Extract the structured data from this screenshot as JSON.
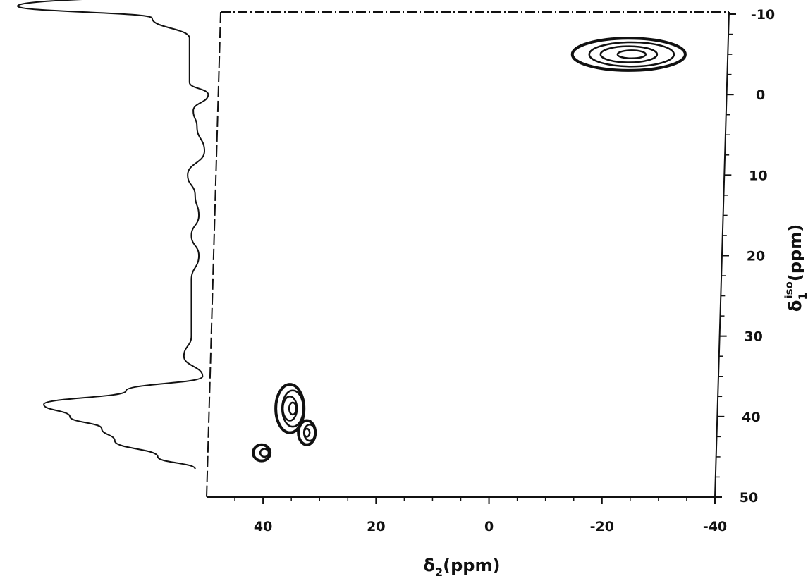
{
  "chart_data": {
    "type": "contour",
    "x_axis": {
      "label_main": "δ",
      "label_sub": "2",
      "label_unit": "(ppm)",
      "range": [
        50,
        -40
      ],
      "ticks": [
        40,
        20,
        0,
        -20,
        -40
      ],
      "tick_labels": [
        "40",
        "20",
        "0",
        "-20",
        "-40"
      ]
    },
    "y_axis": {
      "label_main": "δ",
      "label_sub": "1",
      "label_sup": "iso",
      "label_unit": "(ppm)",
      "range": [
        -10,
        50
      ],
      "ticks": [
        -10,
        0,
        10,
        20,
        30,
        40,
        50
      ],
      "tick_labels": [
        "-10",
        "0",
        "10",
        "20",
        "30",
        "40",
        "50"
      ]
    },
    "peaks": [
      {
        "x": -25,
        "y": -5,
        "x_width": 20,
        "y_width": 4,
        "levels": 4
      },
      {
        "x": 35,
        "y": 39,
        "x_width": 5,
        "y_width": 6,
        "levels": 4
      },
      {
        "x": 32,
        "y": 42,
        "x_width": 3,
        "y_width": 3,
        "levels": 3
      },
      {
        "x": 40,
        "y": 44.5,
        "x_width": 3,
        "y_width": 2,
        "levels": 2
      }
    ],
    "projection": {
      "axis": "y",
      "points": [
        {
          "y": -13,
          "v": 0.0
        },
        {
          "y": -11,
          "v": 1.0
        },
        {
          "y": -9.5,
          "v": 0.28
        },
        {
          "y": -7,
          "v": 0.08
        },
        {
          "y": -4,
          "v": 0.08
        },
        {
          "y": -1.5,
          "v": 0.08
        },
        {
          "y": 0,
          "v": -0.02
        },
        {
          "y": 2,
          "v": 0.06
        },
        {
          "y": 4,
          "v": 0.04
        },
        {
          "y": 7,
          "v": 0.0
        },
        {
          "y": 10,
          "v": 0.09
        },
        {
          "y": 12.5,
          "v": 0.05
        },
        {
          "y": 15,
          "v": 0.03
        },
        {
          "y": 17.5,
          "v": 0.07
        },
        {
          "y": 20,
          "v": 0.03
        },
        {
          "y": 23,
          "v": 0.07
        },
        {
          "y": 26,
          "v": 0.07
        },
        {
          "y": 30,
          "v": 0.07
        },
        {
          "y": 32.5,
          "v": 0.11
        },
        {
          "y": 35,
          "v": 0.01
        },
        {
          "y": 36.8,
          "v": 0.42
        },
        {
          "y": 38.5,
          "v": 0.86
        },
        {
          "y": 40,
          "v": 0.72
        },
        {
          "y": 41.5,
          "v": 0.55
        },
        {
          "y": 43,
          "v": 0.48
        },
        {
          "y": 45,
          "v": 0.25
        },
        {
          "y": 46.5,
          "v": 0.05
        }
      ]
    }
  }
}
